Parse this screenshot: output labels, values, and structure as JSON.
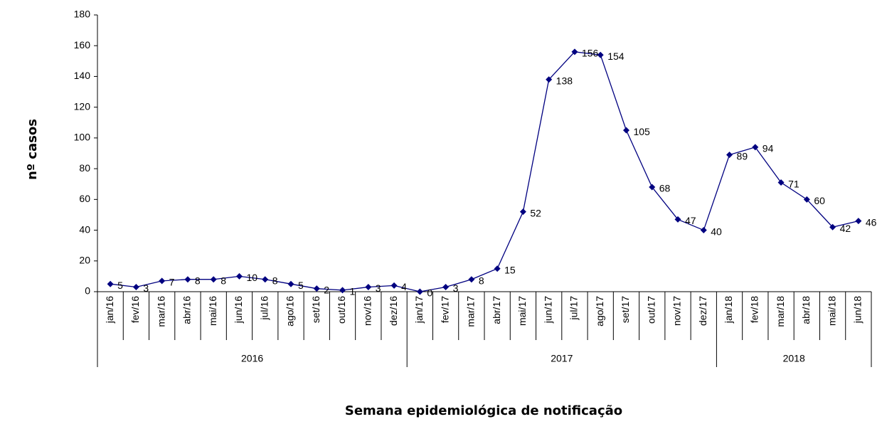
{
  "chart_data": {
    "type": "line",
    "y_label": "nº casos",
    "x_label": "Semana epidemiológica de notificação",
    "categories": [
      "jan/16",
      "fev/16",
      "mar/16",
      "abr/16",
      "mai/16",
      "jun/16",
      "jul/16",
      "ago/16",
      "set/16",
      "out/16",
      "nov/16",
      "dez/16",
      "jan/17",
      "fev/17",
      "mar/17",
      "abr/17",
      "mai/17",
      "jun/17",
      "jul/17",
      "ago/17",
      "set/17",
      "out/17",
      "nov/17",
      "dez/17",
      "jan/18",
      "fev/18",
      "mar/18",
      "abr/18",
      "mai/18",
      "jun/18"
    ],
    "groups": [
      "2016",
      "2017",
      "2018"
    ],
    "values": [
      5,
      3,
      7,
      8,
      8,
      10,
      8,
      5,
      2,
      1,
      3,
      4,
      0,
      3,
      8,
      15,
      52,
      138,
      156,
      154,
      105,
      68,
      47,
      40,
      89,
      94,
      71,
      60,
      42,
      46
    ],
    "color": "#000080",
    "ylim": [
      0,
      180
    ],
    "yticks": [
      0,
      20,
      40,
      60,
      80,
      100,
      120,
      140,
      160,
      180
    ],
    "grid": false
  }
}
